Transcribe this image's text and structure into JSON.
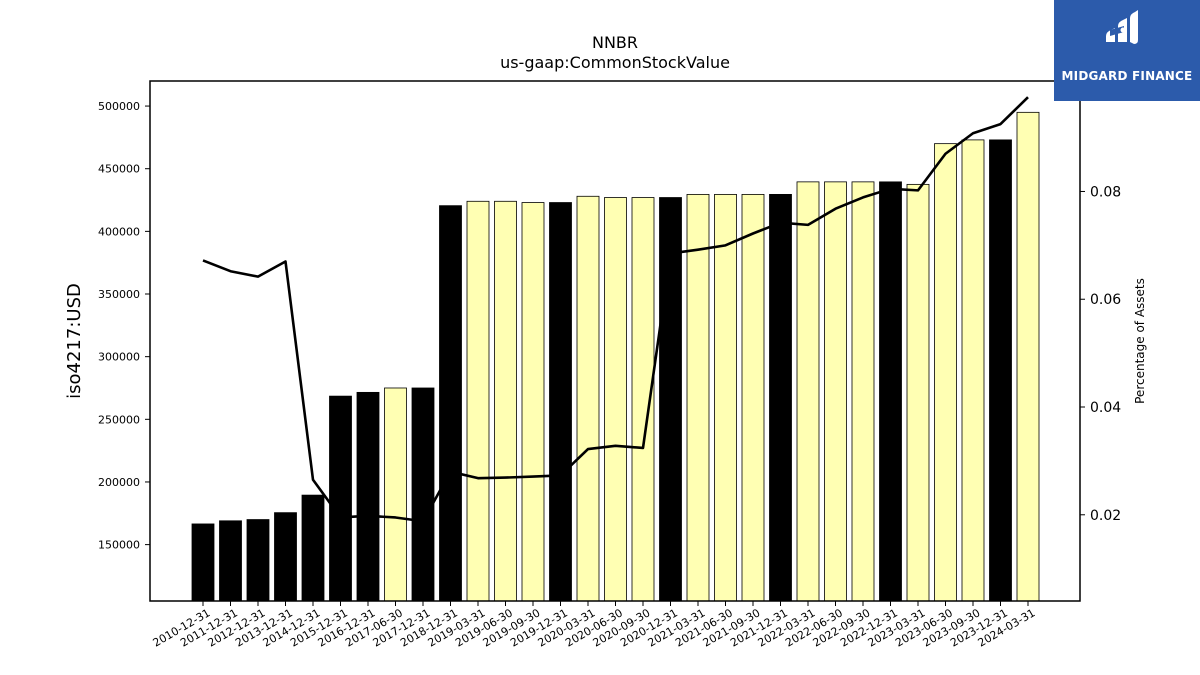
{
  "chart_data": {
    "type": "bar",
    "title": "NNBR",
    "subtitle": "us-gaap:CommonStockValue",
    "ylabel": "iso4217:USD",
    "y2label": "Percentage of Assets",
    "ylim": [
      105000,
      520000
    ],
    "y2lim": [
      0.004,
      0.1005
    ],
    "yticks": [
      150000,
      200000,
      250000,
      300000,
      350000,
      400000,
      450000,
      500000
    ],
    "y2ticks": [
      "0.02",
      "0.04",
      "0.06",
      "0.08"
    ],
    "categories": [
      "2010-12-31",
      "2011-12-31",
      "2012-12-31",
      "2013-12-31",
      "2014-12-31",
      "2015-12-31",
      "2016-12-31",
      "2017-06-30",
      "2017-12-31",
      "2018-12-31",
      "2019-03-31",
      "2019-06-30",
      "2019-09-30",
      "2019-12-31",
      "2020-03-31",
      "2020-06-30",
      "2020-09-30",
      "2020-12-31",
      "2021-03-31",
      "2021-06-30",
      "2021-09-30",
      "2021-12-31",
      "2022-03-31",
      "2022-06-30",
      "2022-09-30",
      "2022-12-31",
      "2023-03-31",
      "2023-06-30",
      "2023-09-30",
      "2023-12-31",
      "2024-03-31"
    ],
    "series": [
      {
        "type": "bar",
        "values": [
          166500,
          169000,
          170000,
          175500,
          189500,
          268500,
          271500,
          275000,
          275000,
          420500,
          424000,
          424000,
          423000,
          423000,
          428000,
          427000,
          427000,
          427000,
          429500,
          429500,
          429500,
          429500,
          439500,
          439500,
          439500,
          439500,
          437500,
          470000,
          473000,
          473000,
          495000
        ],
        "colors": [
          "#000000",
          "#000000",
          "#000000",
          "#000000",
          "#000000",
          "#000000",
          "#000000",
          "#ffffb3",
          "#000000",
          "#000000",
          "#ffffb3",
          "#ffffb3",
          "#ffffb3",
          "#000000",
          "#ffffb3",
          "#ffffb3",
          "#ffffb3",
          "#000000",
          "#ffffb3",
          "#ffffb3",
          "#ffffb3",
          "#000000",
          "#ffffb3",
          "#ffffb3",
          "#ffffb3",
          "#000000",
          "#ffffb3",
          "#ffffb3",
          "#ffffb3",
          "#000000",
          "#ffffb3"
        ]
      },
      {
        "type": "line",
        "axis": "right",
        "color": "#000000",
        "values": [
          0.0672,
          0.0652,
          0.0642,
          0.067,
          0.0265,
          0.0195,
          0.0198,
          0.0195,
          0.0188,
          0.028,
          0.0268,
          0.0269,
          0.0271,
          0.0273,
          0.0322,
          0.0328,
          0.0324,
          0.0685,
          0.0692,
          0.07,
          0.0722,
          0.0742,
          0.0738,
          0.0768,
          0.0789,
          0.0805,
          0.0802,
          0.087,
          0.0908,
          0.0925,
          0.0975
        ]
      }
    ],
    "grid": false
  },
  "logo": {
    "text": "MIDGARD FINANCE",
    "bg_color": "#2c5bab"
  }
}
